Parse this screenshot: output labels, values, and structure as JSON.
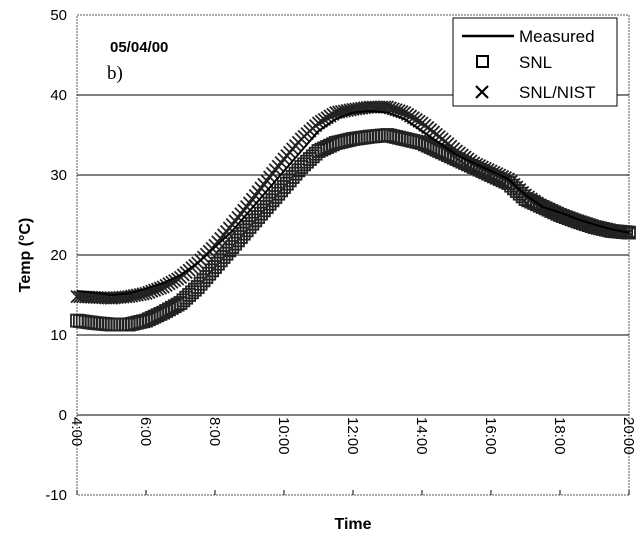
{
  "chart_data": {
    "type": "scatter",
    "date_label": "05/04/00",
    "panel_label": "b)",
    "xlabel": "Time",
    "ylabel": "Temp (°C)",
    "xlim": [
      "4:00",
      "20:00"
    ],
    "ylim": [
      -10,
      50
    ],
    "x_ticks": [
      "4:00",
      "6:00",
      "8:00",
      "10:00",
      "12:00",
      "14:00",
      "16:00",
      "18:00",
      "20:00"
    ],
    "y_ticks": [
      -10,
      0,
      10,
      20,
      30,
      40,
      50
    ],
    "grid": "horizontal",
    "legend_position": "top-right",
    "colors": {
      "line": "#000000",
      "marker": "#222222",
      "grid": "#000000"
    },
    "series": [
      {
        "name": "Measured",
        "marker": "line",
        "x": [
          "4:00",
          "4:30",
          "5:00",
          "5:30",
          "6:00",
          "6:30",
          "7:00",
          "7:30",
          "8:00",
          "8:30",
          "9:00",
          "9:30",
          "10:00",
          "10:30",
          "11:00",
          "11:30",
          "12:00",
          "12:30",
          "13:00",
          "13:30",
          "14:00",
          "14:30",
          "15:00",
          "15:30",
          "16:00",
          "16:30",
          "17:00",
          "17:30",
          "18:00",
          "18:30",
          "19:00",
          "19:30",
          "20:00"
        ],
        "y": [
          15.5,
          15.3,
          15.0,
          15.2,
          15.8,
          16.5,
          17.5,
          19.0,
          21.0,
          23.0,
          25.5,
          28.0,
          30.5,
          33.0,
          35.5,
          37.0,
          37.8,
          38.0,
          37.8,
          37.0,
          35.5,
          34.0,
          32.5,
          31.5,
          30.5,
          29.5,
          27.5,
          26.0,
          25.3,
          24.5,
          23.8,
          23.2,
          22.8
        ]
      },
      {
        "name": "SNL",
        "marker": "square",
        "x": [
          "4:00",
          "4:30",
          "5:00",
          "5:30",
          "6:00",
          "6:30",
          "7:00",
          "7:30",
          "8:00",
          "8:30",
          "9:00",
          "9:30",
          "10:00",
          "10:30",
          "11:00",
          "11:30",
          "12:00",
          "12:30",
          "13:00",
          "13:30",
          "14:00",
          "14:30",
          "15:00",
          "15:30",
          "16:00",
          "16:30",
          "17:00",
          "17:30",
          "18:00",
          "18:30",
          "19:00",
          "19:30",
          "20:00"
        ],
        "y": [
          11.8,
          11.5,
          11.3,
          11.3,
          11.8,
          12.8,
          14.0,
          16.0,
          18.5,
          21.0,
          23.5,
          26.0,
          28.5,
          31.0,
          33.0,
          34.0,
          34.5,
          34.8,
          35.0,
          34.5,
          34.0,
          33.0,
          32.0,
          31.0,
          30.0,
          29.0,
          27.0,
          26.0,
          25.0,
          24.2,
          23.5,
          23.0,
          22.8
        ]
      },
      {
        "name": "SNL/NIST",
        "marker": "x",
        "x": [
          "4:00",
          "4:30",
          "5:00",
          "5:30",
          "6:00",
          "6:30",
          "7:00",
          "7:30",
          "8:00",
          "8:30",
          "9:00",
          "9:30",
          "10:00",
          "10:30",
          "11:00",
          "11:30",
          "12:00",
          "12:30",
          "13:00",
          "13:30",
          "14:00",
          "14:30",
          "15:00",
          "15:30",
          "16:00",
          "16:30",
          "17:00",
          "17:30",
          "18:00",
          "18:30",
          "19:00",
          "19:30",
          "20:00"
        ],
        "y": [
          14.8,
          14.7,
          14.6,
          14.8,
          15.2,
          16.0,
          17.2,
          19.0,
          21.2,
          23.8,
          26.5,
          29.3,
          32.0,
          34.5,
          36.5,
          37.8,
          38.2,
          38.5,
          38.5,
          37.8,
          36.5,
          34.8,
          33.0,
          31.5,
          30.5,
          29.5,
          27.5,
          26.0,
          25.0,
          24.2,
          23.5,
          23.0,
          22.8
        ]
      }
    ]
  }
}
